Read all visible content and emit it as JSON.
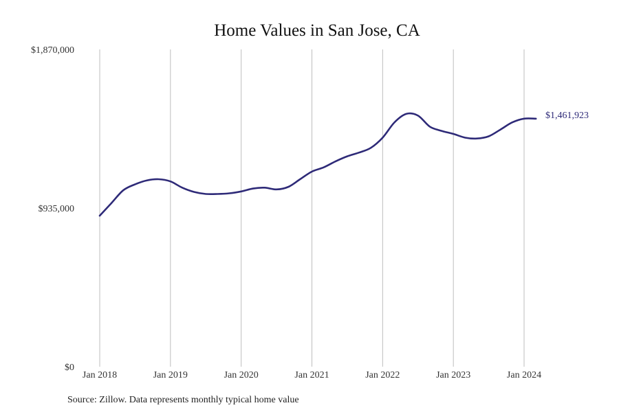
{
  "chart_data": {
    "type": "line",
    "title": "Home Values in San Jose, CA",
    "source": "Source: Zillow. Data represents monthly typical home value",
    "ylim": [
      0,
      1870000
    ],
    "y_tick_values": [
      0,
      935000,
      1870000
    ],
    "y_tick_labels": [
      "$0",
      "$935,000",
      "$1,870,000"
    ],
    "x_tick_values": [
      2018,
      2019,
      2020,
      2021,
      2022,
      2023,
      2024
    ],
    "x_tick_labels": [
      "Jan 2018",
      "Jan 2019",
      "Jan 2020",
      "Jan 2021",
      "Jan 2022",
      "Jan 2023",
      "Jan 2024"
    ],
    "end_label": "$1,461,923",
    "series": [
      {
        "name": "Typical home value",
        "color": "#2e2a78",
        "x": [
          2018.0,
          2018.167,
          2018.333,
          2018.5,
          2018.667,
          2018.833,
          2019.0,
          2019.167,
          2019.333,
          2019.5,
          2019.667,
          2019.833,
          2020.0,
          2020.167,
          2020.333,
          2020.5,
          2020.667,
          2020.833,
          2021.0,
          2021.167,
          2021.333,
          2021.5,
          2021.667,
          2021.833,
          2022.0,
          2022.167,
          2022.333,
          2022.5,
          2022.667,
          2022.833,
          2023.0,
          2023.167,
          2023.333,
          2023.5,
          2023.667,
          2023.833,
          2024.0,
          2024.167
        ],
        "values": [
          890000,
          965000,
          1040000,
          1075000,
          1098000,
          1105000,
          1092000,
          1055000,
          1030000,
          1018000,
          1018000,
          1022000,
          1033000,
          1050000,
          1055000,
          1045000,
          1060000,
          1105000,
          1150000,
          1175000,
          1210000,
          1240000,
          1262000,
          1290000,
          1350000,
          1440000,
          1490000,
          1480000,
          1415000,
          1390000,
          1372000,
          1350000,
          1345000,
          1358000,
          1398000,
          1440000,
          1462000,
          1461923
        ]
      }
    ]
  }
}
